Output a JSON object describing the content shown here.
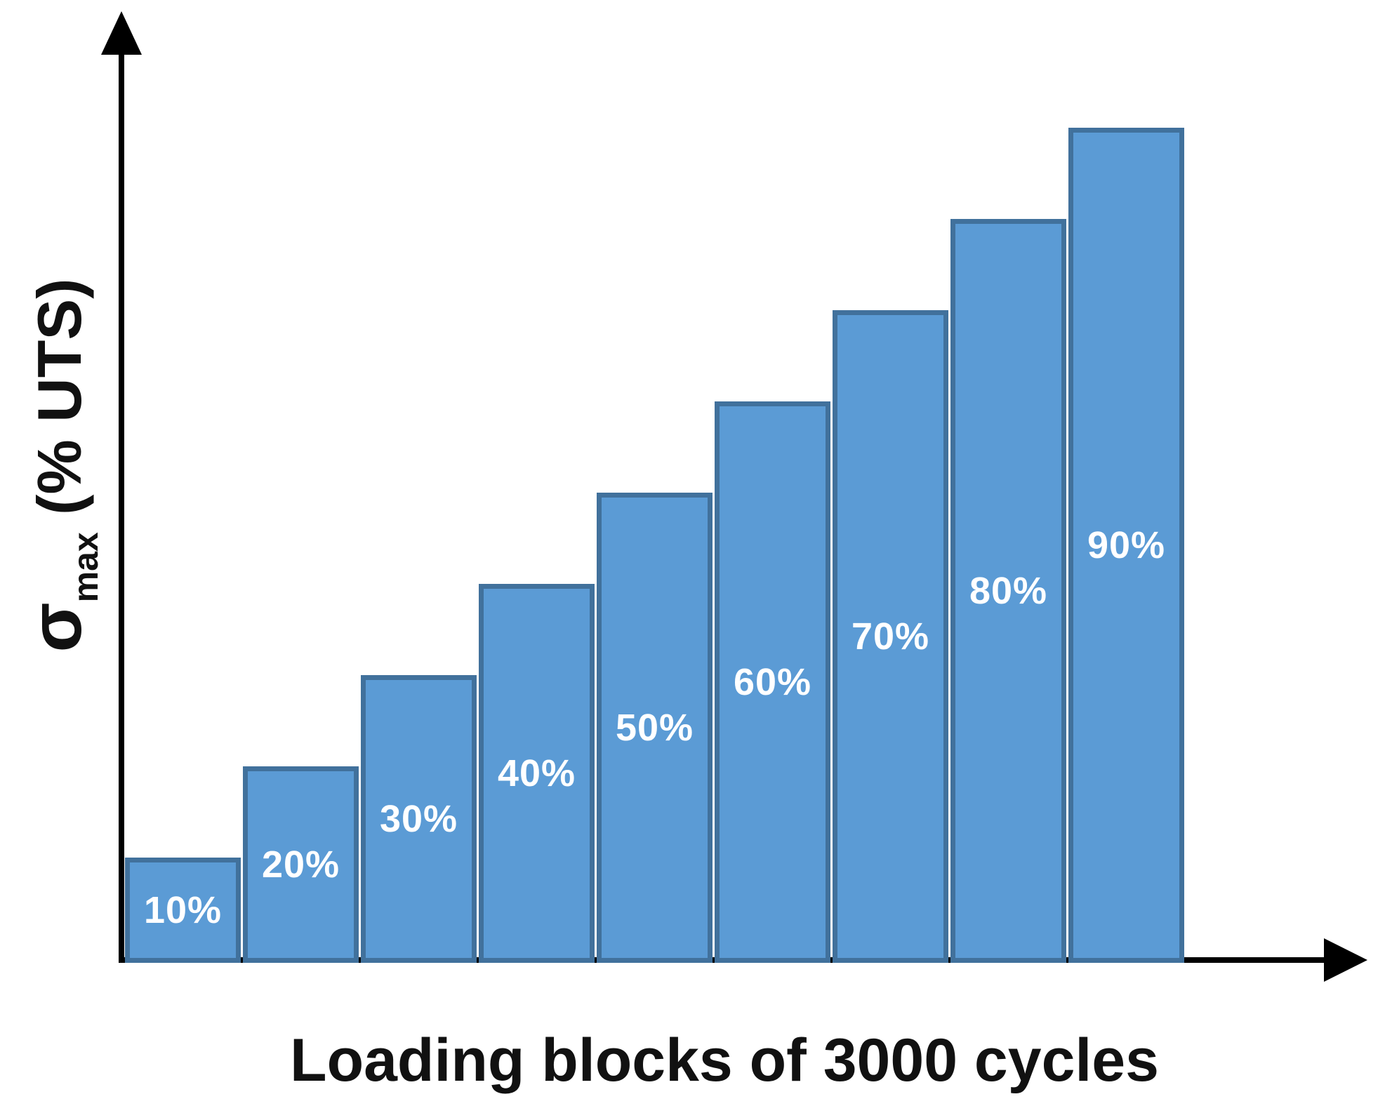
{
  "chart_data": {
    "type": "bar",
    "title": "",
    "xlabel": "Loading blocks of 3000 cycles",
    "ylabel": "σmax (% UTS)",
    "ylabel_parts": {
      "symbol": "σ",
      "subscript": "max",
      "unit": " (% UTS)"
    },
    "values": [
      10,
      20,
      30,
      40,
      50,
      60,
      70,
      80,
      90
    ],
    "bar_labels": [
      "10%",
      "20%",
      "30%",
      "40%",
      "50%",
      "60%",
      "70%",
      "80%",
      "90%"
    ],
    "unit": "% UTS",
    "ylim": [
      0,
      100
    ],
    "grid": false,
    "legend": "none",
    "axes": {
      "x_arrow": true,
      "y_arrow": true,
      "color": "#000000"
    },
    "colors": {
      "bar_fill": "#5B9BD5",
      "bar_border": "#41719C",
      "value_label": "#FFFFFF",
      "axis_title": "#111111"
    }
  }
}
